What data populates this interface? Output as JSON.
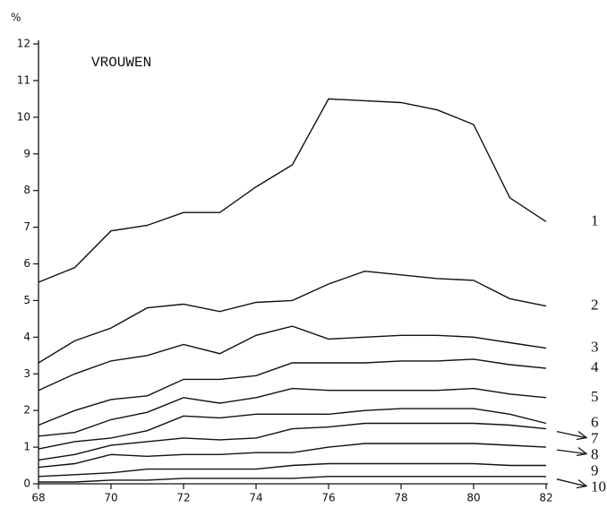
{
  "chart_data": {
    "type": "line",
    "title": "VROUWEN",
    "y_label": "%",
    "x": [
      68,
      69,
      70,
      71,
      72,
      73,
      74,
      75,
      76,
      77,
      78,
      79,
      80,
      81,
      82
    ],
    "xlim": [
      68,
      82
    ],
    "xticks": [
      68,
      70,
      72,
      74,
      76,
      78,
      80,
      82
    ],
    "ylim": [
      0,
      12
    ],
    "yticks": [
      0,
      1,
      2,
      3,
      4,
      5,
      6,
      7,
      8,
      9,
      10,
      11,
      12
    ],
    "grid": false,
    "series": [
      {
        "name": "1",
        "color": "#111111",
        "values": [
          5.5,
          5.9,
          6.9,
          7.05,
          7.4,
          7.4,
          8.1,
          8.7,
          10.5,
          10.45,
          10.4,
          10.2,
          9.8,
          7.8,
          7.15
        ]
      },
      {
        "name": "2",
        "color": "#111111",
        "values": [
          3.3,
          3.9,
          4.25,
          4.8,
          4.9,
          4.7,
          4.95,
          5.0,
          5.45,
          5.8,
          5.7,
          5.6,
          5.55,
          5.05,
          4.85
        ]
      },
      {
        "name": "3",
        "color": "#111111",
        "values": [
          2.55,
          3.0,
          3.35,
          3.5,
          3.8,
          3.55,
          4.05,
          4.3,
          3.95,
          4.0,
          4.05,
          4.05,
          4.0,
          3.85,
          3.7
        ]
      },
      {
        "name": "4",
        "color": "#111111",
        "values": [
          1.6,
          2.0,
          2.3,
          2.4,
          2.85,
          2.85,
          2.95,
          3.3,
          3.3,
          3.3,
          3.35,
          3.35,
          3.4,
          3.25,
          3.15
        ]
      },
      {
        "name": "5",
        "color": "#111111",
        "values": [
          1.3,
          1.4,
          1.75,
          1.95,
          2.35,
          2.2,
          2.35,
          2.6,
          2.55,
          2.55,
          2.55,
          2.55,
          2.6,
          2.45,
          2.35
        ]
      },
      {
        "name": "6",
        "color": "#111111",
        "values": [
          0.95,
          1.15,
          1.25,
          1.45,
          1.85,
          1.8,
          1.9,
          1.9,
          1.9,
          2.0,
          2.05,
          2.05,
          2.05,
          1.9,
          1.65
        ]
      },
      {
        "name": "7",
        "color": "#111111",
        "values": [
          0.65,
          0.8,
          1.05,
          1.15,
          1.25,
          1.2,
          1.25,
          1.5,
          1.55,
          1.65,
          1.65,
          1.65,
          1.65,
          1.6,
          1.5
        ]
      },
      {
        "name": "8",
        "color": "#111111",
        "values": [
          0.45,
          0.55,
          0.8,
          0.75,
          0.8,
          0.8,
          0.85,
          0.85,
          1.0,
          1.1,
          1.1,
          1.1,
          1.1,
          1.05,
          1.0
        ]
      },
      {
        "name": "9",
        "color": "#111111",
        "values": [
          0.2,
          0.25,
          0.3,
          0.4,
          0.4,
          0.4,
          0.4,
          0.5,
          0.55,
          0.55,
          0.55,
          0.55,
          0.55,
          0.5,
          0.5
        ]
      },
      {
        "name": "10",
        "color": "#111111",
        "values": [
          0.05,
          0.05,
          0.1,
          0.1,
          0.15,
          0.15,
          0.15,
          0.15,
          0.2,
          0.2,
          0.2,
          0.2,
          0.2,
          0.2,
          0.2
        ]
      }
    ]
  }
}
